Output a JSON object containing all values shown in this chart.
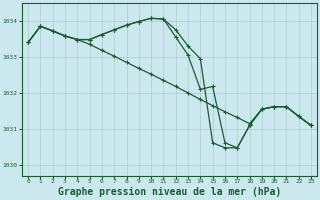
{
  "background_color": "#cce8ef",
  "plot_bg_color": "#cce8ef",
  "grid_color": "#aacccc",
  "line_color": "#1a5c30",
  "xlabel": "Graphe pression niveau de la mer (hPa)",
  "xlabel_fontsize": 7,
  "xlim": [
    -0.5,
    23.5
  ],
  "ylim": [
    1029.7,
    1034.5
  ],
  "yticks": [
    1030,
    1031,
    1032,
    1033,
    1034
  ],
  "xticks": [
    0,
    1,
    2,
    3,
    4,
    5,
    6,
    7,
    8,
    9,
    10,
    11,
    12,
    13,
    14,
    15,
    16,
    17,
    18,
    19,
    20,
    21,
    22,
    23
  ],
  "series": [
    [
      1033.4,
      1033.85,
      1033.72,
      1033.58,
      1033.48,
      1033.48,
      1033.62,
      1033.75,
      1033.88,
      1033.98,
      1034.07,
      1034.05,
      1033.75,
      1033.3,
      1032.95,
      1030.62,
      1030.48,
      1030.48,
      1031.1,
      1031.55,
      1031.62,
      1031.62,
      1031.35,
      1031.1
    ],
    [
      1033.4,
      1033.85,
      1033.72,
      1033.58,
      1033.48,
      1033.35,
      1033.18,
      1033.02,
      1032.85,
      1032.68,
      1032.52,
      1032.35,
      1032.18,
      1032.0,
      1031.82,
      1031.65,
      1031.48,
      1031.32,
      1031.15,
      1031.55,
      1031.62,
      1031.62,
      1031.35,
      1031.1
    ],
    [
      1033.4,
      1033.85,
      1033.72,
      1033.58,
      1033.48,
      1033.48,
      1033.62,
      1033.75,
      1033.88,
      1033.98,
      1034.07,
      1034.05,
      1033.55,
      1033.05,
      1032.1,
      1032.18,
      1030.62,
      1030.48,
      1031.1,
      1031.55,
      1031.62,
      1031.62,
      1031.35,
      1031.1
    ]
  ],
  "marker": "+",
  "markersize": 3,
  "linewidth": 0.9
}
